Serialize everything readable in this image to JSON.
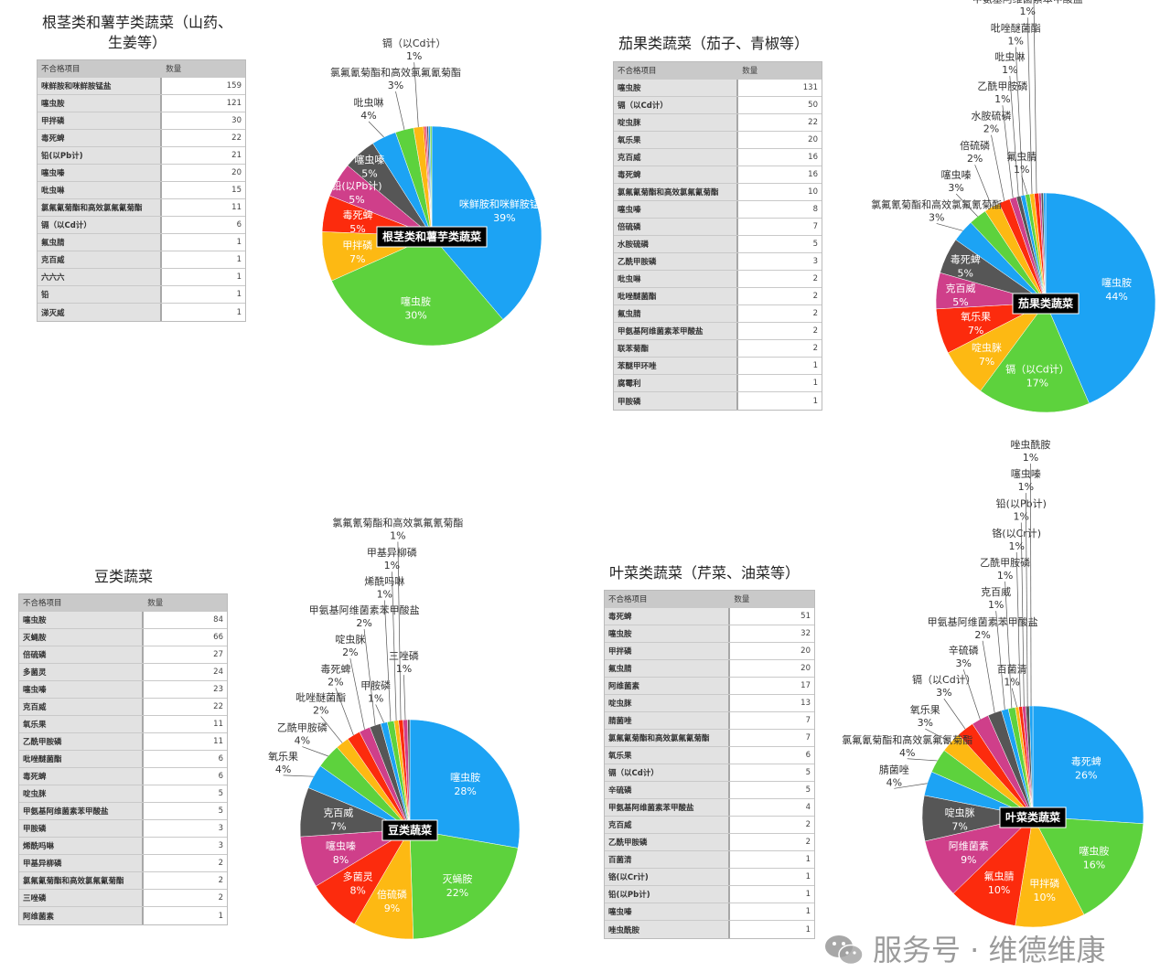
{
  "titles": [
    "根茎类和薯芋类蔬菜（山药、\n生姜等）",
    "茄果类蔬菜（茄子、青椒等）",
    "豆类蔬菜",
    "叶菜类蔬菜（芹菜、油菜等）"
  ],
  "table_headers": [
    "不合格项目",
    "数量"
  ],
  "tables": [
    [
      [
        "咪鲜胺和咪鲜胺锰盐",
        159
      ],
      [
        "噻虫胺",
        121
      ],
      [
        "甲拌磷",
        30
      ],
      [
        "毒死蜱",
        22
      ],
      [
        "铅(以Pb计)",
        21
      ],
      [
        "噻虫嗪",
        20
      ],
      [
        "吡虫啉",
        15
      ],
      [
        "氯氟氰菊酯和高效氯氟氰菊酯",
        11
      ],
      [
        "镉（以Cd计）",
        6
      ],
      [
        "氟虫腈",
        1
      ],
      [
        "克百威",
        1
      ],
      [
        "六六六",
        1
      ],
      [
        "铅",
        1
      ],
      [
        "涕灭威",
        1
      ]
    ],
    [
      [
        "噻虫胺",
        131
      ],
      [
        "镉（以Cd计）",
        50
      ],
      [
        "啶虫脒",
        22
      ],
      [
        "氧乐果",
        20
      ],
      [
        "克百威",
        16
      ],
      [
        "毒死蜱",
        16
      ],
      [
        "氯氟氰菊酯和高效氯氟氰菊酯",
        10
      ],
      [
        "噻虫嗪",
        8
      ],
      [
        "倍硫磷",
        7
      ],
      [
        "水胺硫磷",
        5
      ],
      [
        "乙酰甲胺磷",
        3
      ],
      [
        "吡虫啉",
        2
      ],
      [
        "吡唑醚菌酯",
        2
      ],
      [
        "氟虫腈",
        2
      ],
      [
        "甲氨基阿维菌素苯甲酸盐",
        2
      ],
      [
        "联苯菊酯",
        2
      ],
      [
        "苯醚甲环唑",
        1
      ],
      [
        "腐霉利",
        1
      ],
      [
        "甲胺磷",
        1
      ]
    ],
    [
      [
        "噻虫胺",
        84
      ],
      [
        "灭蝇胺",
        66
      ],
      [
        "倍硫磷",
        27
      ],
      [
        "多菌灵",
        24
      ],
      [
        "噻虫嗪",
        23
      ],
      [
        "克百威",
        22
      ],
      [
        "氧乐果",
        11
      ],
      [
        "乙酰甲胺磷",
        11
      ],
      [
        "吡唑醚菌酯",
        6
      ],
      [
        "毒死蜱",
        6
      ],
      [
        "啶虫脒",
        5
      ],
      [
        "甲氨基阿维菌素苯甲酸盐",
        5
      ],
      [
        "甲胺磷",
        3
      ],
      [
        "烯酰吗啉",
        3
      ],
      [
        "甲基异柳磷",
        2
      ],
      [
        "氯氟氰菊酯和高效氯氟氰菊酯",
        2
      ],
      [
        "三唑磷",
        2
      ],
      [
        "阿维菌素",
        1
      ]
    ],
    [
      [
        "毒死蜱",
        51
      ],
      [
        "噻虫胺",
        32
      ],
      [
        "甲拌磷",
        20
      ],
      [
        "氟虫腈",
        20
      ],
      [
        "阿维菌素",
        17
      ],
      [
        "啶虫脒",
        13
      ],
      [
        "腈菌唑",
        7
      ],
      [
        "氯氟氰菊酯和高效氯氟氰菊酯",
        7
      ],
      [
        "氧乐果",
        6
      ],
      [
        "镉（以Cd计）",
        5
      ],
      [
        "辛硫磷",
        5
      ],
      [
        "甲氨基阿维菌素苯甲酸盐",
        4
      ],
      [
        "克百威",
        2
      ],
      [
        "乙酰甲胺磷",
        2
      ],
      [
        "百菌清",
        1
      ],
      [
        "铬(以Cr计)",
        1
      ],
      [
        "铅(以Pb计)",
        1
      ],
      [
        "噻虫嗪",
        1
      ],
      [
        "唑虫酰胺",
        1
      ]
    ]
  ],
  "chart_data": [
    {
      "type": "pie",
      "title": "根茎类和薯芋类蔬菜",
      "categories": [
        "咪鲜胺和咪鲜胺锰盐",
        "噻虫胺",
        "甲拌磷",
        "毒死蜱",
        "铅(以Pb计)",
        "噻虫嗪",
        "吡虫啉",
        "氯氟氰菊酯和高效氯氟氰菊酯",
        "镉（以Cd计）",
        "氟虫腈",
        "克百威",
        "六六六",
        "铅",
        "涕灭威"
      ],
      "values": [
        159,
        121,
        30,
        22,
        21,
        20,
        15,
        11,
        6,
        1,
        1,
        1,
        1,
        1
      ],
      "labels": [
        "39%",
        "30%",
        "7%",
        "5%",
        "5%",
        "5%",
        "4%",
        "3%",
        "1%",
        null,
        null,
        null,
        null,
        null
      ]
    },
    {
      "type": "pie",
      "title": "茄果类蔬菜",
      "categories": [
        "噻虫胺",
        "镉（以Cd计）",
        "啶虫脒",
        "氧乐果",
        "克百威",
        "毒死蜱",
        "氯氟氰菊酯和高效氯氟氰菊酯",
        "噻虫嗪",
        "倍硫磷",
        "水胺硫磷",
        "乙酰甲胺磷",
        "吡虫啉",
        "吡唑醚菌酯",
        "氟虫腈",
        "甲氨基阿维菌素苯甲酸盐",
        "联苯菊酯",
        "苯醚甲环唑",
        "腐霉利",
        "甲胺磷"
      ],
      "values": [
        131,
        50,
        22,
        20,
        16,
        16,
        10,
        8,
        7,
        5,
        3,
        2,
        2,
        2,
        2,
        2,
        1,
        1,
        1
      ],
      "labels": [
        "44%",
        "17%",
        "7%",
        "7%",
        "5%",
        "5%",
        "3%",
        "3%",
        "2%",
        "2%",
        "1%",
        "1%",
        "1%",
        "1%",
        "1%",
        "1%",
        null,
        null,
        null
      ]
    },
    {
      "type": "pie",
      "title": "豆类蔬菜",
      "categories": [
        "噻虫胺",
        "灭蝇胺",
        "倍硫磷",
        "多菌灵",
        "噻虫嗪",
        "克百威",
        "氧乐果",
        "乙酰甲胺磷",
        "吡唑醚菌酯",
        "毒死蜱",
        "啶虫脒",
        "甲氨基阿维菌素苯甲酸盐",
        "甲胺磷",
        "烯酰吗啉",
        "甲基异柳磷",
        "氯氟氰菊酯和高效氯氟氰菊酯",
        "三唑磷",
        "阿维菌素"
      ],
      "values": [
        84,
        66,
        27,
        24,
        23,
        22,
        11,
        11,
        6,
        6,
        5,
        5,
        3,
        3,
        2,
        2,
        2,
        1
      ],
      "labels": [
        "28%",
        "22%",
        "9%",
        "8%",
        "8%",
        "7%",
        "4%",
        "4%",
        "2%",
        "2%",
        "2%",
        "2%",
        "1%",
        "1%",
        "1%",
        "1%",
        "1%",
        null
      ]
    },
    {
      "type": "pie",
      "title": "叶菜类蔬菜",
      "categories": [
        "毒死蜱",
        "噻虫胺",
        "甲拌磷",
        "氟虫腈",
        "阿维菌素",
        "啶虫脒",
        "腈菌唑",
        "氯氟氰菊酯和高效氯氟氰菊酯",
        "氧乐果",
        "镉（以Cd计）",
        "辛硫磷",
        "甲氨基阿维菌素苯甲酸盐",
        "克百威",
        "乙酰甲胺磷",
        "百菌清",
        "铬(以Cr计)",
        "铅(以Pb计)",
        "噻虫嗪",
        "唑虫酰胺"
      ],
      "values": [
        51,
        32,
        20,
        20,
        17,
        13,
        7,
        7,
        6,
        5,
        5,
        4,
        2,
        2,
        1,
        1,
        1,
        1,
        1
      ],
      "labels": [
        "26%",
        "16%",
        "10%",
        "10%",
        "9%",
        "7%",
        "4%",
        "4%",
        "3%",
        "3%",
        "3%",
        "2%",
        "1%",
        "1%",
        "1%",
        "1%",
        "1%",
        "1%",
        "1%"
      ]
    }
  ],
  "colors": [
    "#1ca3f4",
    "#5dd23d",
    "#fdb913",
    "#fc2b0d",
    "#cf3f8a",
    "#565656"
  ],
  "watermark": {
    "icon": "wechat-icon",
    "text": "服务号 · 维德维康"
  }
}
